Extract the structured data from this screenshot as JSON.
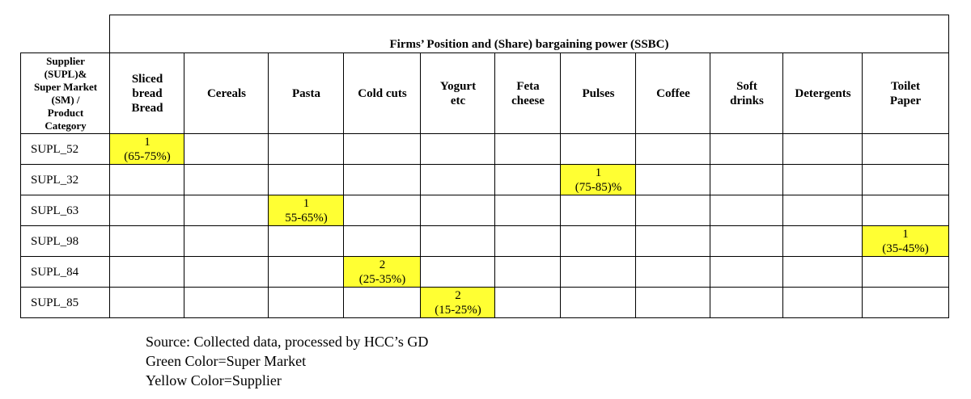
{
  "table": {
    "title": "Firms’ Position and (Share) bargaining power (SSBC)",
    "corner_header": [
      "Supplier",
      "(SUPL)&",
      "Super Market",
      "(SM) /",
      "Product",
      "Category"
    ],
    "columns": [
      [
        "Sliced",
        "bread",
        "Bread"
      ],
      [
        "Cereals"
      ],
      [
        "Pasta"
      ],
      [
        "Cold cuts"
      ],
      [
        "Yogurt",
        "etc"
      ],
      [
        "Feta",
        "cheese"
      ],
      [
        "Pulses"
      ],
      [
        "Coffee"
      ],
      [
        "Soft",
        "drinks"
      ],
      [
        "Detergents"
      ],
      [
        "Toilet",
        "Paper"
      ]
    ],
    "highlight_color": "#ffff33",
    "rows": [
      {
        "label": "SUPL_52",
        "column": 0,
        "position": "1",
        "share": "(65-75%)"
      },
      {
        "label": "SUPL_32",
        "column": 6,
        "position": "1",
        "share": "(75-85)%"
      },
      {
        "label": "SUPL_63",
        "column": 2,
        "position": "1",
        "share": "55-65%)"
      },
      {
        "label": "SUPL_98",
        "column": 10,
        "position": "1",
        "share": "(35-45%)"
      },
      {
        "label": "SUPL_84",
        "column": 3,
        "position": "2",
        "share": "(25-35%)"
      },
      {
        "label": "SUPL_85",
        "column": 4,
        "position": "2",
        "share": "(15-25%)"
      }
    ]
  },
  "notes": [
    "Source: Collected data, processed by HCC’s GD",
    "Green Color=Super Market",
    "Yellow Color=Supplier"
  ]
}
